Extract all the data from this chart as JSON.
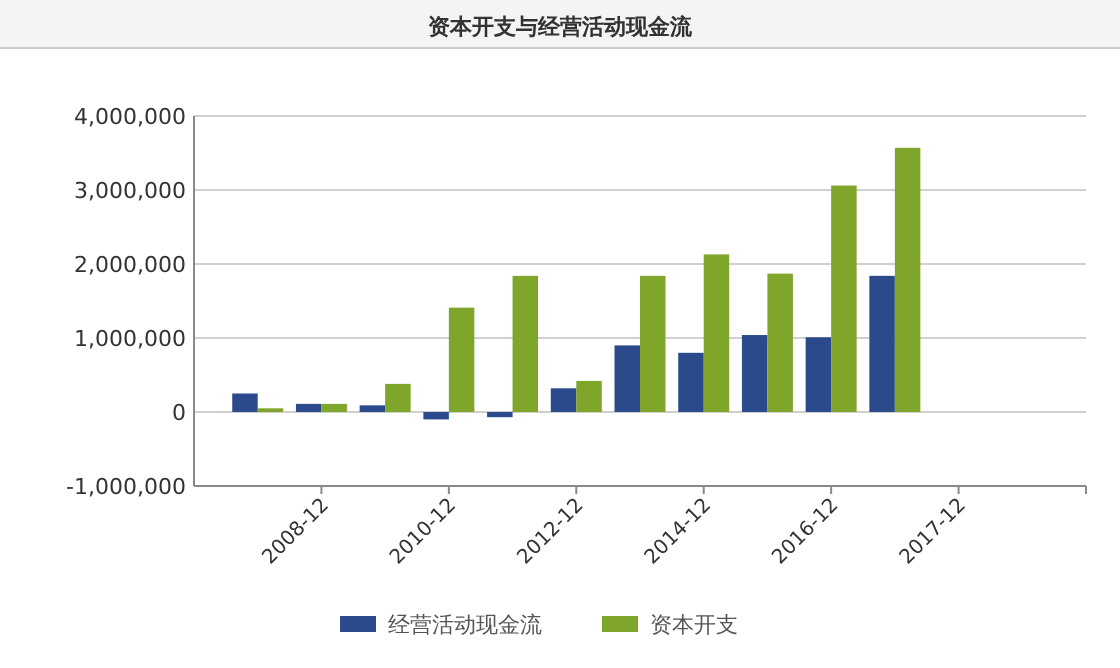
{
  "chart_data": {
    "type": "bar",
    "title": "资本开支与经营活动现金流",
    "categories": [
      null,
      "2008-12",
      null,
      "2010-12",
      null,
      "2012-12",
      null,
      "2014-12",
      null,
      "2016-12",
      null,
      "2017-12",
      null
    ],
    "series": [
      {
        "name": "经营活动现金流",
        "color": "#2b4a8c",
        "values": [
          250000,
          110000,
          90000,
          -100000,
          -70000,
          320000,
          900000,
          800000,
          1040000,
          1010000,
          1840000,
          null,
          null
        ]
      },
      {
        "name": "资本开支",
        "color": "#7fa52a",
        "values": [
          50000,
          110000,
          380000,
          1410000,
          1840000,
          420000,
          1840000,
          2130000,
          1870000,
          3060000,
          3570000,
          null,
          null
        ]
      }
    ],
    "ylim": [
      -1000000,
      4000000
    ],
    "yticks": [
      {
        "value": -1000000,
        "label": "-1,000,000"
      },
      0,
      {
        "value": 1000000,
        "label": "1,000,000"
      },
      {
        "value": 2000000,
        "label": "2,000,000"
      },
      {
        "value": 3000000,
        "label": "3,000,000"
      },
      {
        "value": 4000000,
        "label": "4,000,000"
      }
    ],
    "grid": "y",
    "legend": "bottom"
  }
}
